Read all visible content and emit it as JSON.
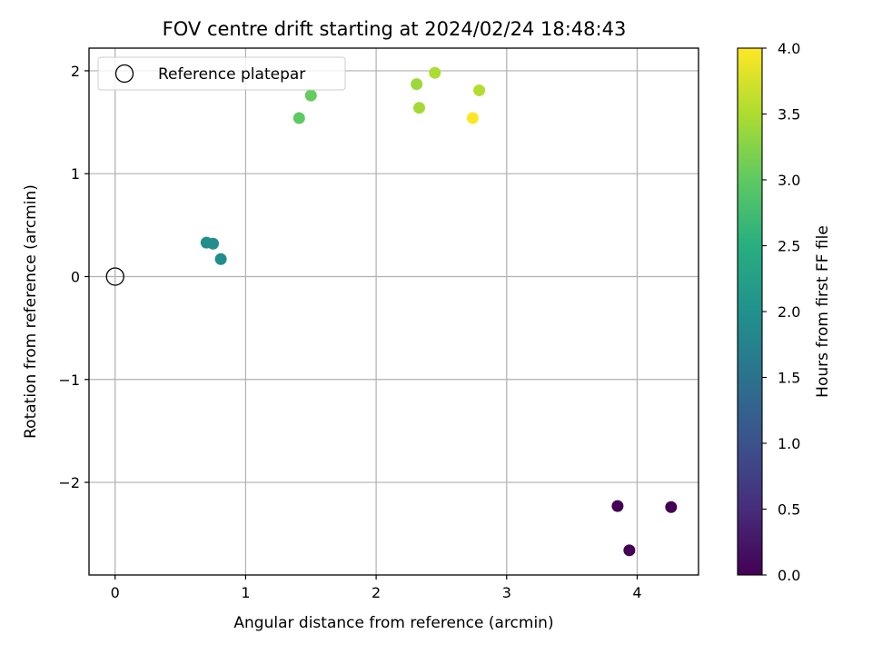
{
  "chart_data": {
    "type": "scatter",
    "title": "FOV centre drift starting at 2024/02/24 18:48:43",
    "xlabel": "Angular distance from reference (arcmin)",
    "ylabel": "Rotation from reference (arcmin)",
    "xlim": [
      -0.2,
      4.47
    ],
    "ylim": [
      -2.9,
      2.22
    ],
    "xticks": [
      0,
      1,
      2,
      3,
      4
    ],
    "yticks": [
      -2,
      -1,
      0,
      1,
      2
    ],
    "xtick_labels": [
      "0",
      "1",
      "2",
      "3",
      "4"
    ],
    "ytick_labels": [
      "−2",
      "−1",
      "0",
      "1",
      "2"
    ],
    "grid": true,
    "legend": {
      "position": "top-left",
      "entries": [
        "Reference platepar"
      ]
    },
    "reference_point": {
      "x": 0,
      "y": 0,
      "label": "Reference platepar",
      "marker": "open-circle"
    },
    "colorbar": {
      "label": "Hours from first FF file",
      "range": [
        0.0,
        4.0
      ],
      "ticks": [
        0.0,
        0.5,
        1.0,
        1.5,
        2.0,
        2.5,
        3.0,
        3.5,
        4.0
      ],
      "tick_labels": [
        "0.0",
        "0.5",
        "1.0",
        "1.5",
        "2.0",
        "2.5",
        "3.0",
        "3.5",
        "4.0"
      ],
      "colormap": "viridis"
    },
    "points": [
      {
        "x": 3.85,
        "y": -2.23,
        "hours": 0.0
      },
      {
        "x": 3.94,
        "y": -2.66,
        "hours": 0.0
      },
      {
        "x": 4.26,
        "y": -2.24,
        "hours": 0.0
      },
      {
        "x": 0.7,
        "y": 0.33,
        "hours": 1.95
      },
      {
        "x": 0.75,
        "y": 0.32,
        "hours": 1.95
      },
      {
        "x": 0.81,
        "y": 0.17,
        "hours": 1.95
      },
      {
        "x": 1.41,
        "y": 1.54,
        "hours": 3.0
      },
      {
        "x": 1.5,
        "y": 1.76,
        "hours": 3.05
      },
      {
        "x": 2.31,
        "y": 1.87,
        "hours": 3.4
      },
      {
        "x": 2.33,
        "y": 1.64,
        "hours": 3.45
      },
      {
        "x": 2.45,
        "y": 1.98,
        "hours": 3.5
      },
      {
        "x": 2.79,
        "y": 1.81,
        "hours": 3.55
      },
      {
        "x": 2.74,
        "y": 1.54,
        "hours": 4.0
      }
    ]
  }
}
